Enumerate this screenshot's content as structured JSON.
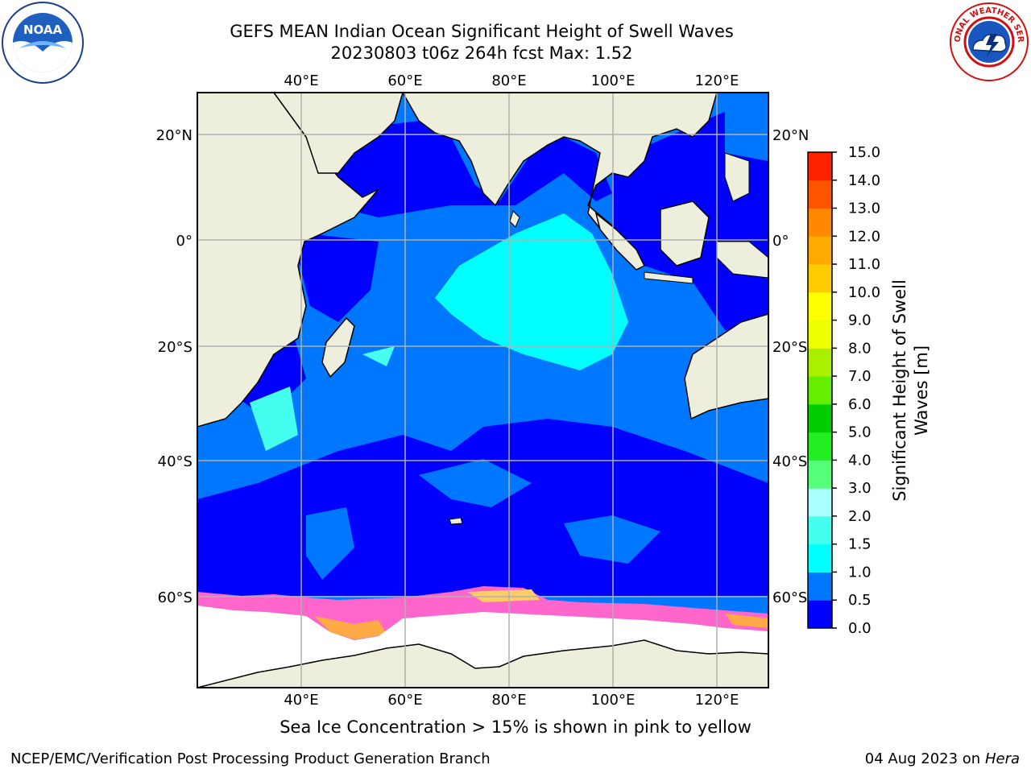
{
  "title_line1": "GEFS MEAN Indian Ocean Significant Height of Swell Waves",
  "title_line2": "20230803 t06z 264h fcst   Max: 1.52",
  "logos": {
    "left": "NOAA",
    "right": "NATIONAL WEATHER SERVICE"
  },
  "map": {
    "lon_ticks": [
      "40°E",
      "60°E",
      "80°E",
      "100°E",
      "120°E"
    ],
    "lat_ticks_left": [
      "20°N",
      "0°",
      "20°S",
      "40°S",
      "60°S"
    ],
    "lat_ticks_right": [
      "20°N",
      "0°",
      "20°S",
      "40°S",
      "60°S"
    ],
    "colors": {
      "land": "#eeeedc",
      "sea_ice": "#ffffff",
      "grid": "#b0b0b0"
    }
  },
  "colorbar": {
    "label_line1": "Significant Height of Swell",
    "label_line2": "Waves [m]",
    "ticks": [
      "0.0",
      "0.5",
      "1.0",
      "1.5",
      "2.0",
      "3.0",
      "4.0",
      "5.0",
      "6.0",
      "7.0",
      "8.0",
      "9.0",
      "10.0",
      "11.0",
      "12.0",
      "13.0",
      "14.0",
      "15.0"
    ],
    "colors": [
      "#0000ff",
      "#0077ff",
      "#00ffff",
      "#44ffee",
      "#aaffff",
      "#55ff77",
      "#22ee22",
      "#00cc00",
      "#66ee00",
      "#aaee00",
      "#eeff00",
      "#ffff00",
      "#ffcc00",
      "#ffaa00",
      "#ff8800",
      "#ff5500",
      "#ff2200",
      "#ff0000"
    ]
  },
  "footer_note": "Sea Ice Concentration > 15% is shown in pink to yellow",
  "credit": "NCEP/EMC/Verification Post Processing Product Generation Branch",
  "date_text": "04 Aug 2023 on",
  "machine": "Hera"
}
